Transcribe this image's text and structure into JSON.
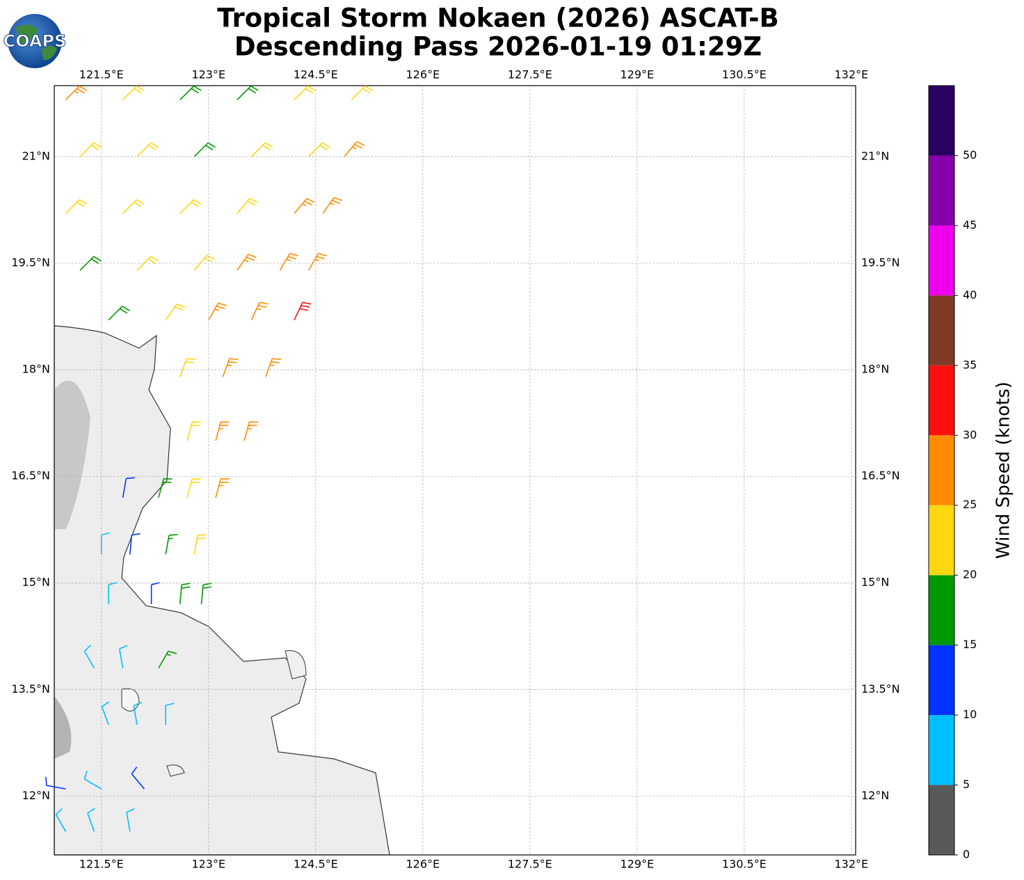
{
  "chart_data": {
    "type": "wind-barbs",
    "title": "Tropical Storm Nokaen (2026) ASCAT-B",
    "subtitle": "Descending Pass 2026-01-19 01:29Z",
    "logo": "COAPS",
    "xlim": [
      120.84,
      132.06
    ],
    "ylim": [
      11.17,
      22.0
    ],
    "xticks": [
      {
        "value": 121.5,
        "label": "121.5°E"
      },
      {
        "value": 123,
        "label": "123°E"
      },
      {
        "value": 124.5,
        "label": "124.5°E"
      },
      {
        "value": 126,
        "label": "126°E"
      },
      {
        "value": 127.5,
        "label": "127.5°E"
      },
      {
        "value": 129,
        "label": "129°E"
      },
      {
        "value": 130.5,
        "label": "130.5°E"
      },
      {
        "value": 132,
        "label": "132°E"
      }
    ],
    "yticks": [
      {
        "value": 12,
        "label": "12°N"
      },
      {
        "value": 13.5,
        "label": "13.5°N"
      },
      {
        "value": 15,
        "label": "15°N"
      },
      {
        "value": 16.5,
        "label": "16.5°N"
      },
      {
        "value": 18,
        "label": "18°N"
      },
      {
        "value": 19.5,
        "label": "19.5°N"
      },
      {
        "value": 21,
        "label": "21°N"
      }
    ],
    "grid": true,
    "barbs": {
      "lon": [
        121.0,
        121.8,
        122.6,
        123.4,
        124.2,
        125.0,
        121.2,
        122.0,
        122.8,
        123.6,
        124.4,
        124.9,
        121.0,
        121.8,
        122.6,
        123.4,
        124.2,
        124.6,
        121.2,
        122.0,
        122.8,
        123.4,
        124.0,
        124.4,
        121.6,
        122.4,
        123.0,
        123.6,
        124.2,
        122.6,
        123.2,
        123.8,
        122.7,
        123.1,
        123.5,
        121.8,
        122.3,
        122.7,
        123.1,
        121.5,
        121.9,
        122.4,
        122.8,
        121.6,
        122.2,
        122.6,
        122.9,
        121.4,
        121.8,
        122.3,
        121.6,
        122.0,
        122.4,
        121.0,
        121.5,
        122.1,
        121.0,
        121.4,
        121.9
      ],
      "lat": [
        21.8,
        21.8,
        21.8,
        21.8,
        21.8,
        21.8,
        21.0,
        21.0,
        21.0,
        21.0,
        21.0,
        21.0,
        20.2,
        20.2,
        20.2,
        20.2,
        20.2,
        20.2,
        19.4,
        19.4,
        19.4,
        19.4,
        19.4,
        19.4,
        18.7,
        18.7,
        18.7,
        18.7,
        18.7,
        17.9,
        17.9,
        17.9,
        17.0,
        17.0,
        17.0,
        16.2,
        16.2,
        16.2,
        16.2,
        15.4,
        15.4,
        15.4,
        15.4,
        14.7,
        14.7,
        14.7,
        14.7,
        13.8,
        13.8,
        13.8,
        13.0,
        13.0,
        13.0,
        12.1,
        12.1,
        12.1,
        11.5,
        11.5,
        11.5
      ],
      "speed": [
        25,
        22,
        18,
        18,
        22,
        22,
        22,
        22,
        18,
        22,
        22,
        27,
        22,
        22,
        22,
        22,
        27,
        27,
        18,
        22,
        22,
        27,
        27,
        27,
        18,
        22,
        27,
        27,
        32,
        22,
        27,
        27,
        22,
        27,
        27,
        12,
        18,
        22,
        27,
        8,
        12,
        17,
        22,
        8,
        12,
        18,
        18,
        8,
        8,
        17,
        8,
        8,
        8,
        12,
        8,
        12,
        8,
        8,
        8
      ],
      "direction": [
        45,
        45,
        45,
        45,
        45,
        45,
        45,
        45,
        45,
        45,
        45,
        40,
        45,
        45,
        45,
        40,
        40,
        35,
        45,
        45,
        40,
        35,
        30,
        30,
        45,
        35,
        30,
        25,
        25,
        20,
        20,
        20,
        15,
        15,
        15,
        10,
        15,
        15,
        15,
        0,
        5,
        10,
        10,
        0,
        0,
        5,
        5,
        330,
        350,
        30,
        340,
        350,
        0,
        280,
        300,
        320,
        330,
        340,
        350
      ]
    },
    "colorbar": {
      "label": "Wind Speed (knots)",
      "bounds": [
        0,
        5,
        10,
        15,
        20,
        25,
        30,
        35,
        40,
        45,
        50,
        55
      ],
      "colors": [
        "#595959",
        "#00bfff",
        "#0033ff",
        "#009900",
        "#ffd711",
        "#ff8c00",
        "#ff1010",
        "#7f3a28",
        "#ee00ee",
        "#8800aa",
        "#2a0060"
      ],
      "ticks": [
        0,
        5,
        10,
        15,
        20,
        25,
        30,
        35,
        40,
        45,
        50
      ]
    }
  }
}
